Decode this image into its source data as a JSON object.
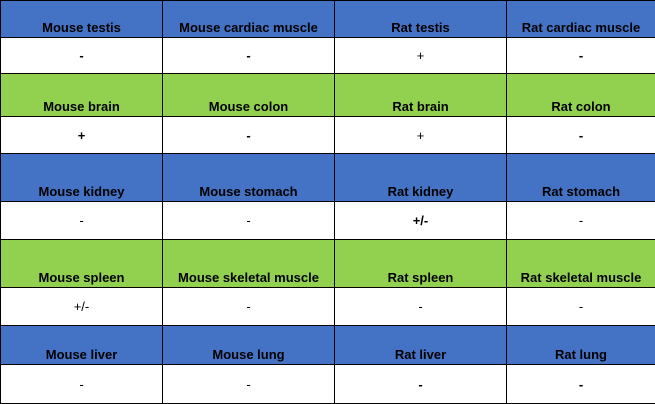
{
  "colors": {
    "blue_header": "#4472c4",
    "green_header": "#92d050",
    "value_row": "#ffffff",
    "border": "#000000"
  },
  "rows": [
    {
      "headers": [
        "Mouse testis",
        "Mouse cardiac muscle",
        "Rat testis",
        "Rat cardiac muscle"
      ],
      "values": [
        "-",
        "-",
        "+",
        "-"
      ]
    },
    {
      "headers": [
        "Mouse brain",
        "Mouse colon",
        "Rat brain",
        "Rat colon"
      ],
      "values": [
        "+",
        "-",
        "+",
        "-"
      ]
    },
    {
      "headers": [
        "Mouse kidney",
        "Mouse stomach",
        "Rat kidney",
        "Rat stomach"
      ],
      "values": [
        "-",
        "-",
        "+/-",
        "-"
      ]
    },
    {
      "headers": [
        "Mouse spleen",
        "Mouse skeletal muscle",
        "Rat spleen",
        "Rat skeletal muscle"
      ],
      "values": [
        "+/-",
        "-",
        "-",
        "-"
      ]
    },
    {
      "headers": [
        "Mouse liver",
        "Mouse lung",
        "Rat liver",
        "Rat lung"
      ],
      "values": [
        "-",
        "-",
        "-",
        "-"
      ]
    }
  ]
}
